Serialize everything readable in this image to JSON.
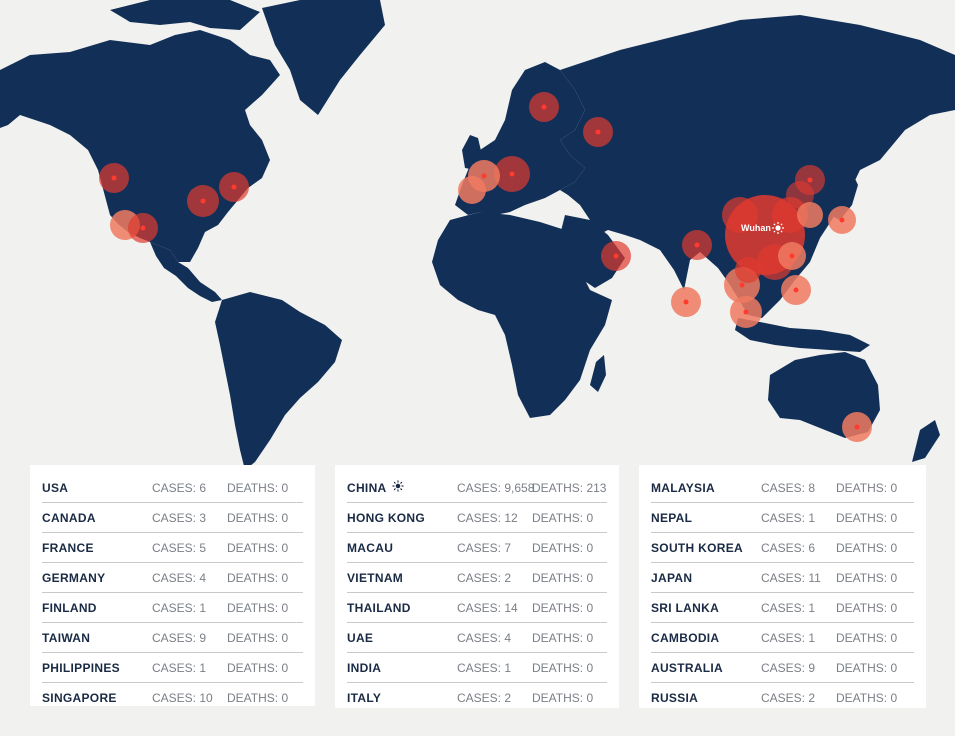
{
  "map": {
    "colors": {
      "land": "#123057",
      "ocean": "#f1f1ef",
      "outbreak": "#e03a2f",
      "halo": "#f07a60"
    },
    "epicenter_label": "Wuhan",
    "epicenter_icon": "sun-icon"
  },
  "panels": [
    [
      {
        "country": "USA",
        "cases": "CASES: 6",
        "deaths": "DEATHS: 0"
      },
      {
        "country": "CANADA",
        "cases": "CASES: 3",
        "deaths": "DEATHS: 0"
      },
      {
        "country": "FRANCE",
        "cases": "CASES: 5",
        "deaths": "DEATHS: 0"
      },
      {
        "country": "GERMANY",
        "cases": "CASES: 4",
        "deaths": "DEATHS: 0"
      },
      {
        "country": "FINLAND",
        "cases": "CASES: 1",
        "deaths": "DEATHS: 0"
      },
      {
        "country": "TAIWAN",
        "cases": "CASES: 9",
        "deaths": "DEATHS: 0"
      },
      {
        "country": "PHILIPPINES",
        "cases": "CASES: 1",
        "deaths": "DEATHS: 0"
      },
      {
        "country": "SINGAPORE",
        "cases": "CASES: 10",
        "deaths": "DEATHS: 0"
      }
    ],
    [
      {
        "country": "CHINA",
        "cases": "CASES: 9,658",
        "deaths": "DEATHS: 213",
        "icon": "sun-icon"
      },
      {
        "country": "HONG KONG",
        "cases": "CASES: 12",
        "deaths": "DEATHS: 0"
      },
      {
        "country": "MACAU",
        "cases": "CASES: 7",
        "deaths": "DEATHS: 0"
      },
      {
        "country": "VIETNAM",
        "cases": "CASES: 2",
        "deaths": "DEATHS: 0"
      },
      {
        "country": "THAILAND",
        "cases": "CASES: 14",
        "deaths": "DEATHS: 0"
      },
      {
        "country": "UAE",
        "cases": "CASES: 4",
        "deaths": "DEATHS: 0"
      },
      {
        "country": "INDIA",
        "cases": "CASES: 1",
        "deaths": "DEATHS: 0"
      },
      {
        "country": "ITALY",
        "cases": "CASES: 2",
        "deaths": "DEATHS: 0"
      }
    ],
    [
      {
        "country": "MALAYSIA",
        "cases": "CASES: 8",
        "deaths": "DEATHS: 0"
      },
      {
        "country": "NEPAL",
        "cases": "CASES: 1",
        "deaths": "DEATHS: 0"
      },
      {
        "country": "SOUTH KOREA",
        "cases": "CASES: 6",
        "deaths": "DEATHS: 0"
      },
      {
        "country": "JAPAN",
        "cases": "CASES: 11",
        "deaths": "DEATHS: 0"
      },
      {
        "country": "SRI LANKA",
        "cases": "CASES: 1",
        "deaths": "DEATHS: 0"
      },
      {
        "country": "CAMBODIA",
        "cases": "CASES: 1",
        "deaths": "DEATHS: 0"
      },
      {
        "country": "AUSTRALIA",
        "cases": "CASES: 9",
        "deaths": "DEATHS: 0"
      },
      {
        "country": "RUSSIA",
        "cases": "CASES: 2",
        "deaths": "DEATHS: 0"
      }
    ]
  ]
}
